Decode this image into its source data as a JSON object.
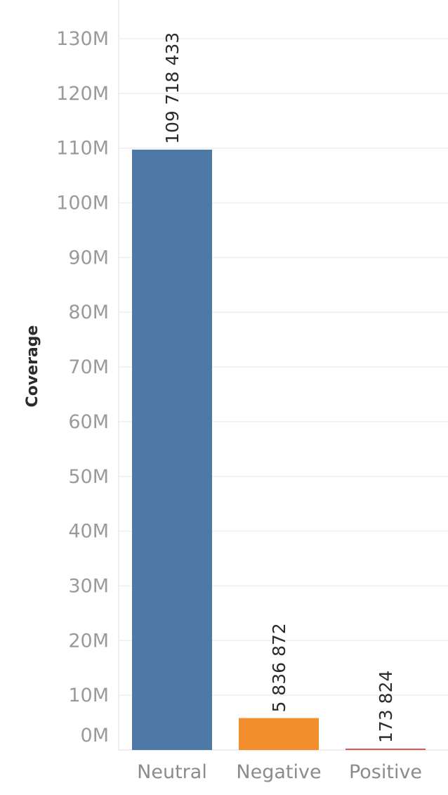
{
  "chart_data": {
    "type": "bar",
    "categories": [
      "Neutral",
      "Negative",
      "Positive"
    ],
    "values": [
      109718433,
      5836872,
      173824
    ],
    "data_labels": [
      "109 718 433",
      "5 836 872",
      "173 824"
    ],
    "colors": [
      "#4e79a7",
      "#f28e2b",
      "#e15759"
    ],
    "ylabel": "Coverage",
    "xlabel": "",
    "ylim": [
      0,
      130000000
    ],
    "yticks": [
      0,
      10000000,
      20000000,
      30000000,
      40000000,
      50000000,
      60000000,
      70000000,
      80000000,
      90000000,
      100000000,
      110000000,
      120000000,
      130000000
    ],
    "ytick_labels": [
      "0M",
      "10M",
      "20M",
      "30M",
      "40M",
      "50M",
      "60M",
      "70M",
      "80M",
      "90M",
      "100M",
      "110M",
      "120M",
      "130M"
    ],
    "grid": true
  }
}
